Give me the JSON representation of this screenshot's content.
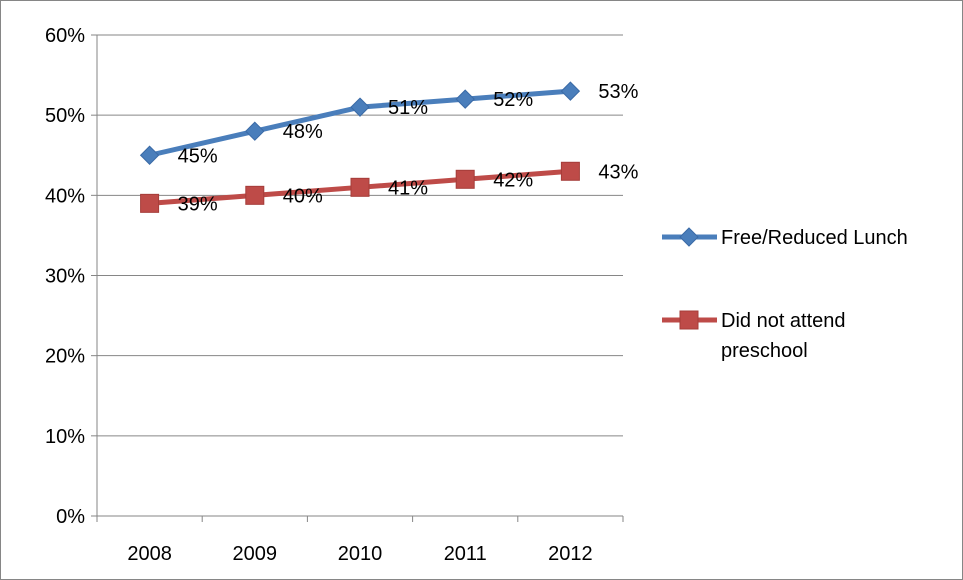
{
  "chart_data": {
    "type": "line",
    "categories": [
      "2008",
      "2009",
      "2010",
      "2011",
      "2012"
    ],
    "series": [
      {
        "name": "Free/Reduced Lunch",
        "values": [
          45,
          48,
          51,
          52,
          53
        ],
        "labels": [
          "45%",
          "48%",
          "51%",
          "52%",
          "53%"
        ],
        "color": "#4a7ebb",
        "marker": "diamond"
      },
      {
        "name": "Did not attend preschool",
        "legend_lines": [
          "Did not attend",
          "preschool"
        ],
        "values": [
          39,
          40,
          41,
          42,
          43
        ],
        "labels": [
          "39%",
          "40%",
          "41%",
          "42%",
          "43%"
        ],
        "color": "#be4b48",
        "marker": "square"
      }
    ],
    "yticks": [
      "0%",
      "10%",
      "20%",
      "30%",
      "40%",
      "50%",
      "60%"
    ],
    "ylim": [
      0,
      60
    ],
    "grid": true,
    "legend_position": "right"
  }
}
